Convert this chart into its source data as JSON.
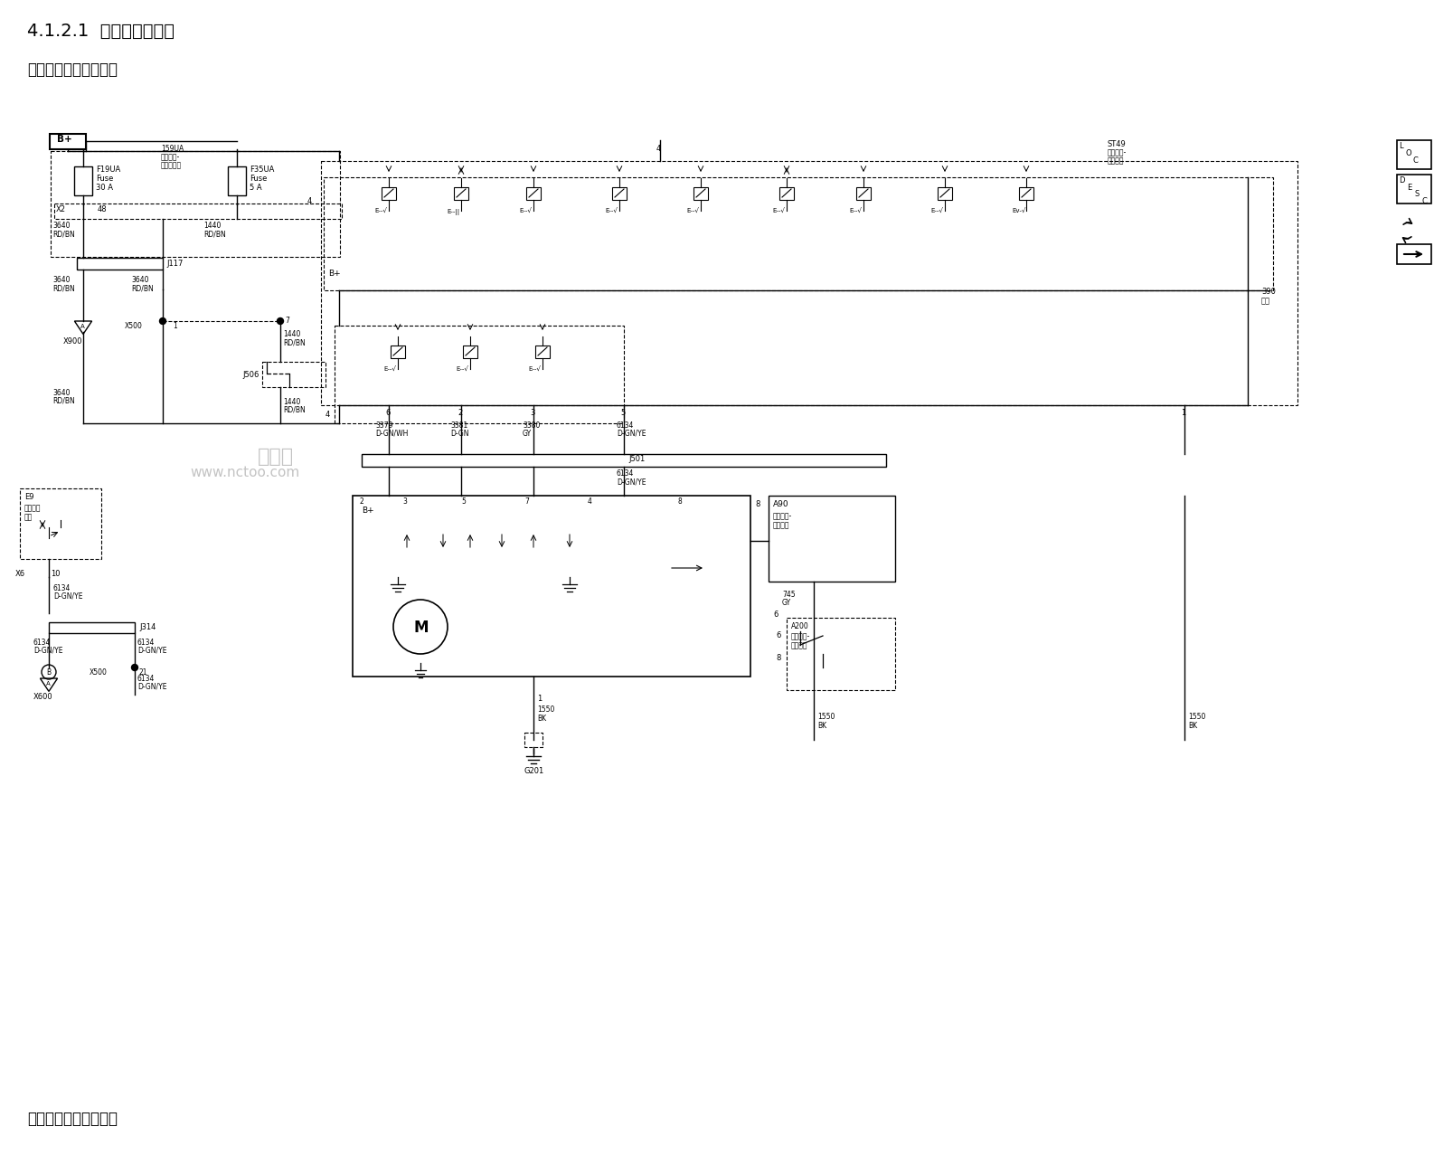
{
  "title1": "4.1.2.1  活动车窗示意图",
  "title2": "驾驶员车窗（两厢车）",
  "title3": "驾驶员车窗（三厢车）",
  "watermark1": "牛车坛",
  "watermark2": "www.nctoo.com",
  "bg_color": "#ffffff"
}
